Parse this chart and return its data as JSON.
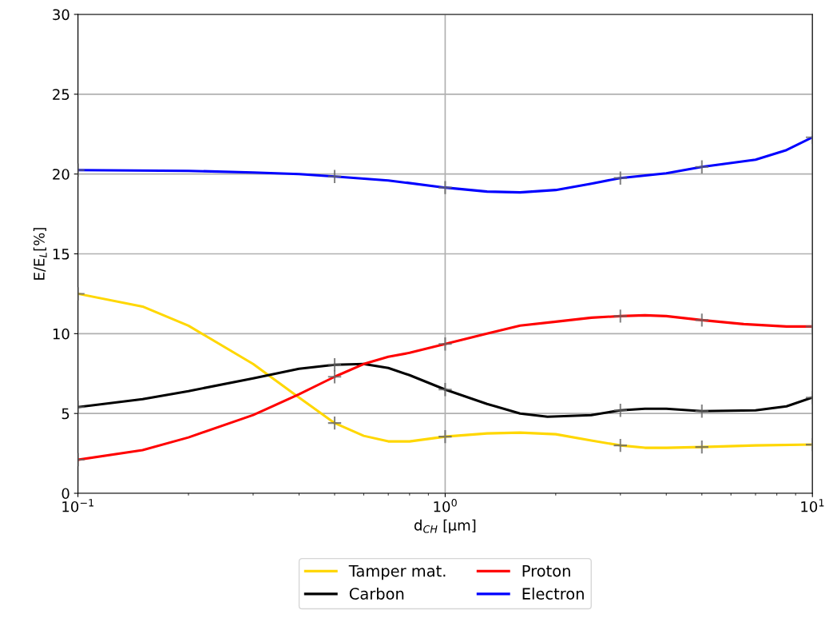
{
  "chart_data": {
    "type": "line",
    "xlabel": "d$_{CH}$ [µm]",
    "ylabel": "E/E$_{L}$[%]",
    "log": "x",
    "grid": true,
    "legend": "bottom",
    "marker": "none",
    "line_style": "solid",
    "xlim": [
      0.1,
      10
    ],
    "xticks": [
      {
        "value": 0.1,
        "label": "10$^{−1}$"
      },
      {
        "value": 1,
        "label": "10$^{0}$"
      },
      {
        "value": 10,
        "label": "10$^{1}$"
      }
    ],
    "ylim": [
      0,
      30
    ],
    "yticks": [
      0,
      5,
      10,
      15,
      20,
      25,
      30
    ],
    "series": [
      {
        "name": "Tamper mat.",
        "color": "#ffd700",
        "x": [
          0.1,
          0.15,
          0.2,
          0.3,
          0.4,
          0.5,
          0.6,
          0.7,
          0.8,
          1,
          1.3,
          1.6,
          2,
          2.5,
          3,
          3.5,
          4,
          5,
          7,
          10
        ],
        "values": [
          12.5,
          11.7,
          10.5,
          8.1,
          6.0,
          4.4,
          3.6,
          3.25,
          3.25,
          3.55,
          3.75,
          3.8,
          3.7,
          3.3,
          3.0,
          2.85,
          2.85,
          2.9,
          3.0,
          3.05
        ]
      },
      {
        "name": "Carbon",
        "color": "#000000",
        "x": [
          0.1,
          0.15,
          0.2,
          0.3,
          0.4,
          0.5,
          0.6,
          0.7,
          0.8,
          1,
          1.3,
          1.6,
          1.9,
          2.5,
          3,
          3.5,
          4,
          5,
          7,
          8.5,
          10
        ],
        "values": [
          5.4,
          5.9,
          6.4,
          7.2,
          7.8,
          8.05,
          8.1,
          7.85,
          7.4,
          6.5,
          5.6,
          5.0,
          4.8,
          4.9,
          5.2,
          5.3,
          5.3,
          5.15,
          5.2,
          5.45,
          6.0
        ]
      },
      {
        "name": "Proton",
        "color": "#ff0000",
        "x": [
          0.1,
          0.15,
          0.2,
          0.3,
          0.4,
          0.5,
          0.6,
          0.7,
          0.8,
          1,
          1.3,
          1.6,
          2,
          2.5,
          3,
          3.5,
          4,
          5,
          6.5,
          8.5,
          10
        ],
        "values": [
          2.1,
          2.7,
          3.5,
          4.9,
          6.2,
          7.3,
          8.1,
          8.55,
          8.8,
          9.35,
          10.0,
          10.5,
          10.75,
          11.0,
          11.1,
          11.15,
          11.1,
          10.85,
          10.6,
          10.45,
          10.45
        ]
      },
      {
        "name": "Electron",
        "color": "#0000ff",
        "x": [
          0.1,
          0.2,
          0.3,
          0.4,
          0.5,
          0.7,
          1,
          1.3,
          1.6,
          2,
          2.5,
          3,
          4,
          5,
          7,
          8.5,
          10
        ],
        "values": [
          20.25,
          20.2,
          20.1,
          20.0,
          19.85,
          19.6,
          19.15,
          18.9,
          18.85,
          19.0,
          19.4,
          19.75,
          20.05,
          20.45,
          20.9,
          21.5,
          22.3
        ]
      },
      {
        "type": "scatter",
        "marker": "cross",
        "color": "#666666",
        "x": [
          0.1,
          0.5,
          1,
          3,
          5,
          10
        ],
        "values": [
          12.5,
          4.4,
          3.55,
          3.0,
          2.9,
          3.05
        ]
      },
      {
        "type": "scatter",
        "marker": "cross",
        "color": "#666666",
        "x": [
          0.1,
          0.5,
          1,
          3,
          5,
          10
        ],
        "values": [
          5.4,
          8.05,
          6.5,
          5.2,
          5.15,
          6.0
        ]
      },
      {
        "type": "scatter",
        "marker": "cross",
        "color": "#666666",
        "x": [
          0.1,
          0.5,
          1,
          3,
          5,
          10
        ],
        "values": [
          2.1,
          7.3,
          9.35,
          11.1,
          10.85,
          10.45
        ]
      },
      {
        "type": "scatter",
        "marker": "cross",
        "color": "#666666",
        "x": [
          0.1,
          0.5,
          1,
          3,
          5,
          10
        ],
        "values": [
          20.25,
          19.85,
          19.15,
          19.75,
          20.45,
          22.3
        ]
      }
    ]
  }
}
